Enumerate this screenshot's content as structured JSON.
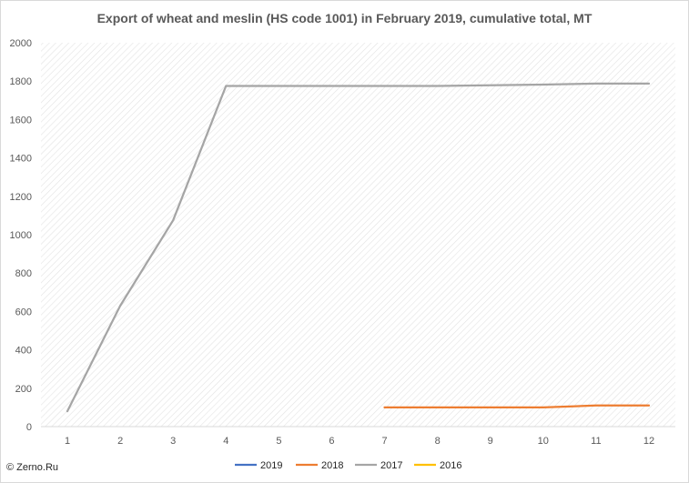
{
  "chart_data": {
    "type": "line",
    "title": "Export of wheat and meslin (HS code 1001) in February 2019, cumulative total, MT",
    "xlabel": "",
    "ylabel": "",
    "x": [
      1,
      2,
      3,
      4,
      5,
      6,
      7,
      8,
      9,
      10,
      11,
      12
    ],
    "xlim": [
      0.5,
      12.5
    ],
    "ylim": [
      0,
      2000
    ],
    "yticks": [
      0,
      200,
      400,
      600,
      800,
      1000,
      1200,
      1400,
      1600,
      1800,
      2000
    ],
    "grid": "none",
    "plot_background": "diagonal hatch",
    "legend_position": "bottom",
    "series": [
      {
        "name": "2019",
        "color": "#4472c4",
        "values": [
          null,
          null,
          null,
          null,
          null,
          null,
          null,
          null,
          null,
          null,
          null,
          null
        ]
      },
      {
        "name": "2018",
        "color": "#ed7d31",
        "values": [
          null,
          null,
          null,
          null,
          null,
          null,
          100,
          100,
          100,
          100,
          110,
          110
        ]
      },
      {
        "name": "2017",
        "color": "#a5a5a5",
        "values": [
          80,
          630,
          1075,
          1775,
          1775,
          1775,
          1775,
          1775,
          1778,
          1782,
          1787,
          1787
        ]
      },
      {
        "name": "2016",
        "color": "#ffc000",
        "values": [
          null,
          null,
          null,
          null,
          null,
          null,
          null,
          null,
          null,
          null,
          null,
          null
        ]
      }
    ]
  },
  "source_label": "© Zerno.Ru"
}
